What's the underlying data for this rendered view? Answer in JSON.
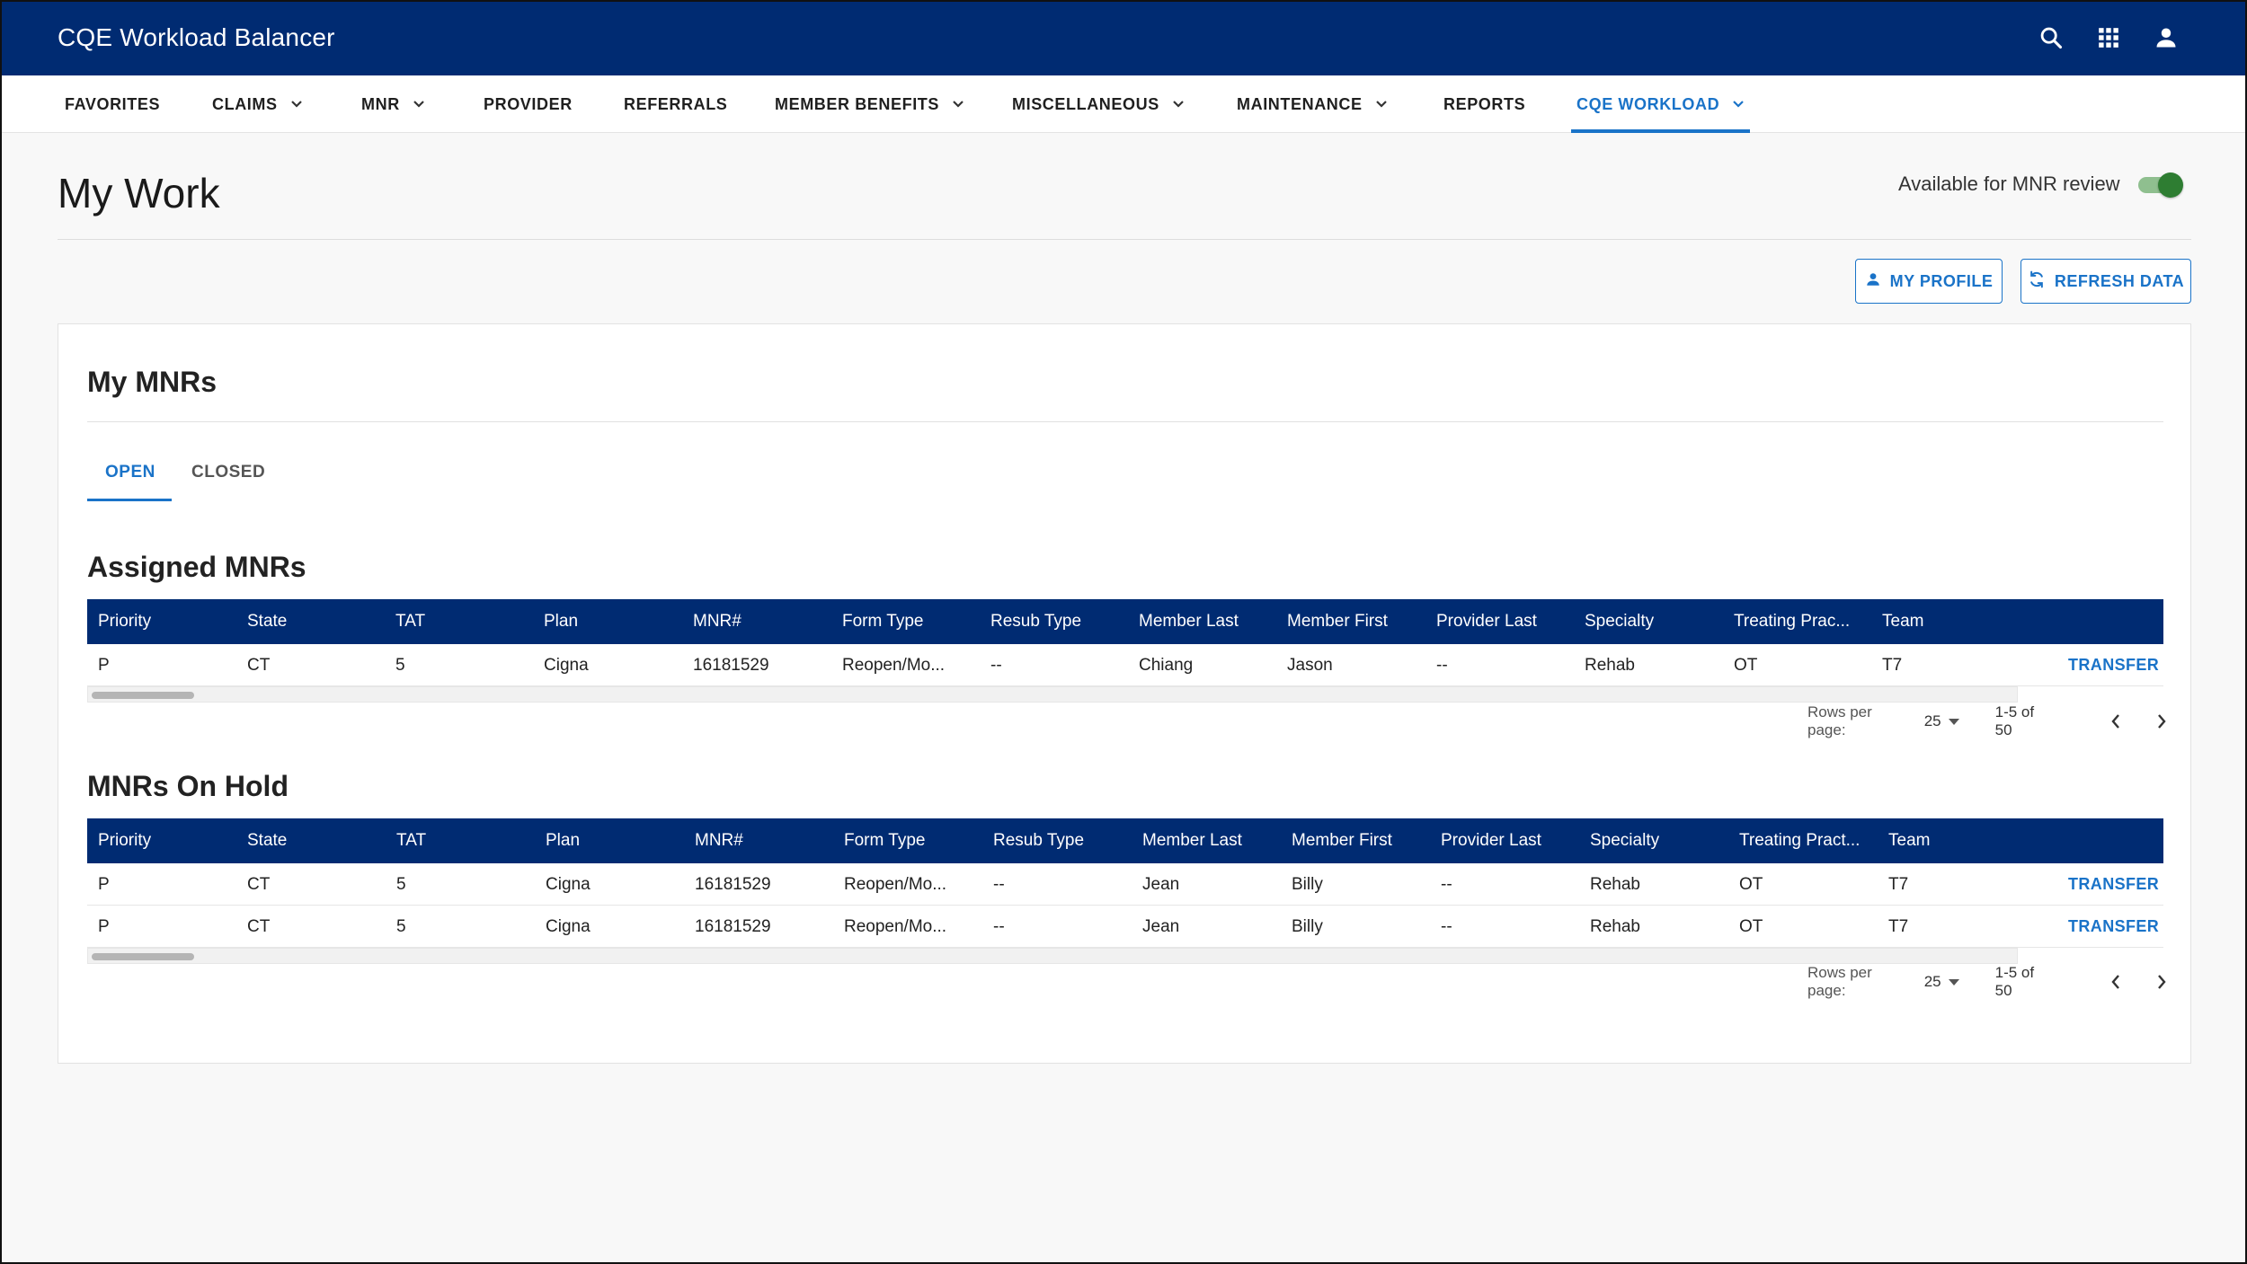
{
  "app": {
    "title": "CQE Workload Balancer",
    "accent": "#002b72",
    "link_color": "#1a73c8",
    "icons": [
      "search-icon",
      "apps-grid-icon",
      "account-icon"
    ]
  },
  "nav": [
    {
      "label": "FAVORITES",
      "dropdown": false
    },
    {
      "label": "CLAIMS",
      "dropdown": true
    },
    {
      "label": "MNR",
      "dropdown": true
    },
    {
      "label": "PROVIDER",
      "dropdown": false
    },
    {
      "label": "REFERRALS",
      "dropdown": false
    },
    {
      "label": "MEMBER BENEFITS",
      "dropdown": true
    },
    {
      "label": "MISCELLANEOUS",
      "dropdown": true
    },
    {
      "label": "MAINTENANCE",
      "dropdown": true
    },
    {
      "label": "REPORTS",
      "dropdown": false
    },
    {
      "label": "CQE WORKLOAD",
      "dropdown": true,
      "active": true
    }
  ],
  "page": {
    "title": "My Work",
    "availability_label": "Available for MNR review",
    "availability_on": true,
    "my_profile_label": "MY PROFILE",
    "refresh_label": "REFRESH DATA"
  },
  "card": {
    "title": "My MNRs",
    "tabs": [
      {
        "label": "OPEN",
        "active": true
      },
      {
        "label": "CLOSED",
        "active": false
      }
    ]
  },
  "assigned": {
    "title": "Assigned MNRs",
    "columns": [
      "Priority",
      "State",
      "TAT",
      "Plan",
      "MNR#",
      "Form Type",
      "Resub Type",
      "Member Last",
      "Member First",
      "Provider Last",
      "Specialty",
      "Treating Prac...",
      "Team"
    ],
    "rows": [
      {
        "cells": [
          "P",
          "CT",
          "5",
          "Cigna",
          "16181529",
          "Reopen/Mo...",
          "--",
          "Chiang",
          "Jason",
          "--",
          "Rehab",
          "OT",
          "T7"
        ],
        "action": "TRANSFER"
      }
    ],
    "pager": {
      "rows_label": "Rows per page:",
      "rows_value": "25",
      "range": "1-5 of 50"
    }
  },
  "onhold": {
    "title": "MNRs On Hold",
    "columns": [
      "Priority",
      "State",
      "TAT",
      "Plan",
      "MNR#",
      "Form Type",
      "Resub Type",
      "Member Last",
      "Member First",
      "Provider Last",
      "Specialty",
      "Treating Pract...",
      "Team"
    ],
    "rows": [
      {
        "cells": [
          "P",
          "CT",
          "5",
          "Cigna",
          "16181529",
          "Reopen/Mo...",
          "--",
          "Jean",
          "Billy",
          "--",
          "Rehab",
          "OT",
          "T7"
        ],
        "action": "TRANSFER"
      },
      {
        "cells": [
          "P",
          "CT",
          "5",
          "Cigna",
          "16181529",
          "Reopen/Mo...",
          "--",
          "Jean",
          "Billy",
          "--",
          "Rehab",
          "OT",
          "T7"
        ],
        "action": "TRANSFER"
      }
    ],
    "pager": {
      "rows_label": "Rows per page:",
      "rows_value": "25",
      "range": "1-5 of 50"
    }
  }
}
